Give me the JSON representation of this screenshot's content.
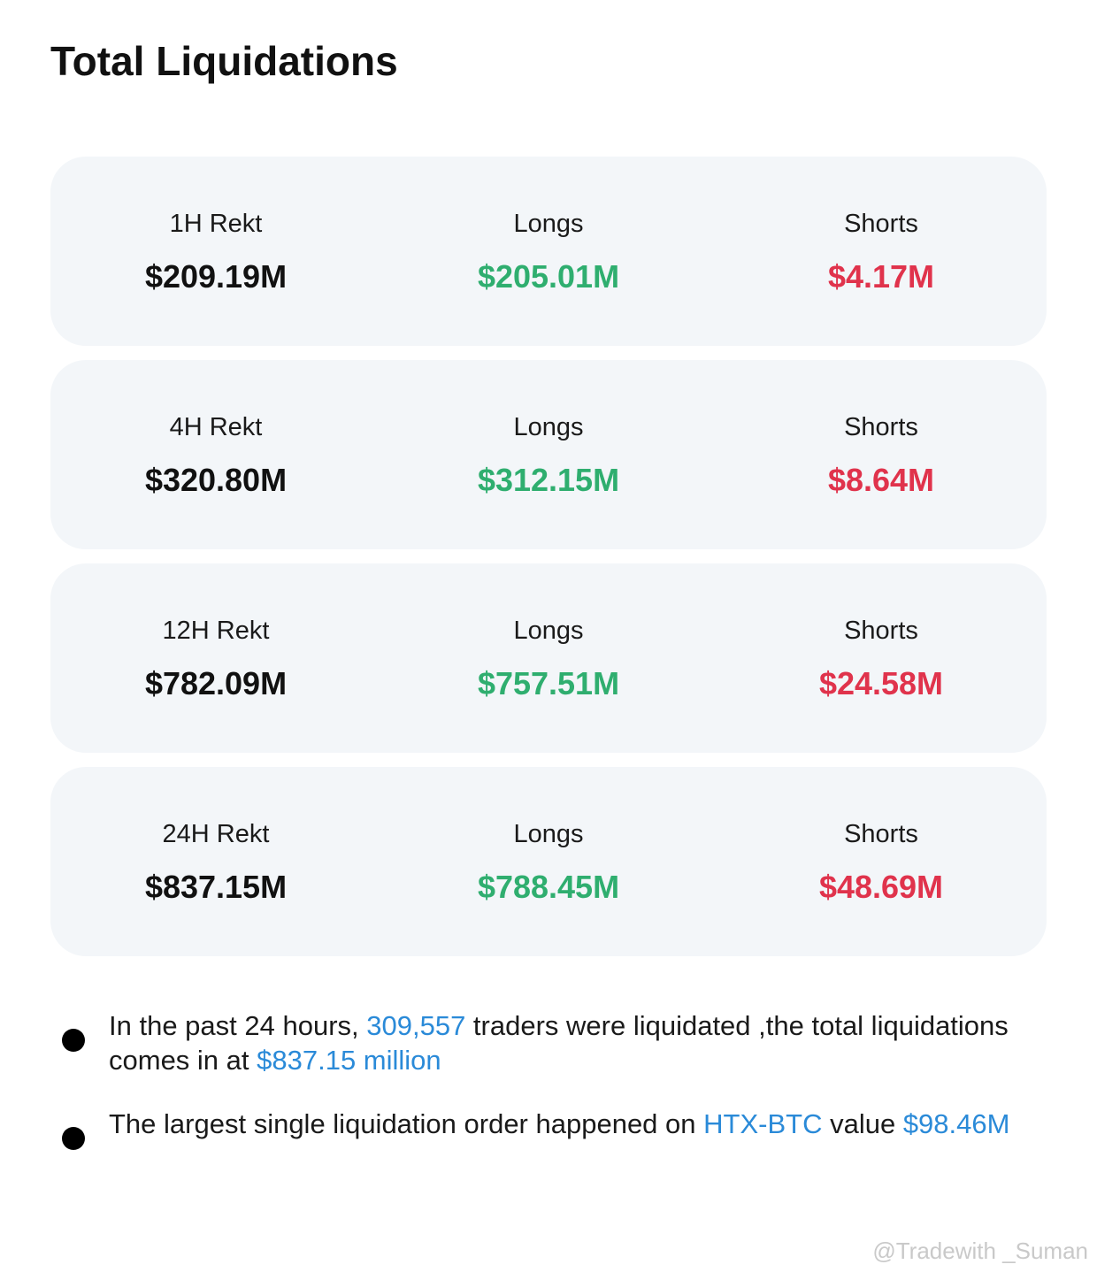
{
  "header": {
    "title": "Total Liquidations"
  },
  "cards": [
    {
      "period": "1H Rekt",
      "total": "$209.19M",
      "longs_label": "Longs",
      "longs": "$205.01M",
      "shorts_label": "Shorts",
      "shorts": "$4.17M"
    },
    {
      "period": "4H Rekt",
      "total": "$320.80M",
      "longs_label": "Longs",
      "longs": "$312.15M",
      "shorts_label": "Shorts",
      "shorts": "$8.64M"
    },
    {
      "period": "12H Rekt",
      "total": "$782.09M",
      "longs_label": "Longs",
      "longs": "$757.51M",
      "shorts_label": "Shorts",
      "shorts": "$24.58M"
    },
    {
      "period": "24H Rekt",
      "total": "$837.15M",
      "longs_label": "Longs",
      "longs": "$788.45M",
      "shorts_label": "Shorts",
      "shorts": "$48.69M"
    }
  ],
  "notes": [
    {
      "parts": [
        "In the past 24 hours, ",
        "309,557",
        " traders were liquidated ,the total liquidations comes in at ",
        "$837.15 million"
      ]
    },
    {
      "parts": [
        "The largest single liquidation order happened on ",
        "HTX-BTC",
        " value ",
        "$98.46M"
      ]
    }
  ],
  "watermark": "@Tradewith _Suman"
}
